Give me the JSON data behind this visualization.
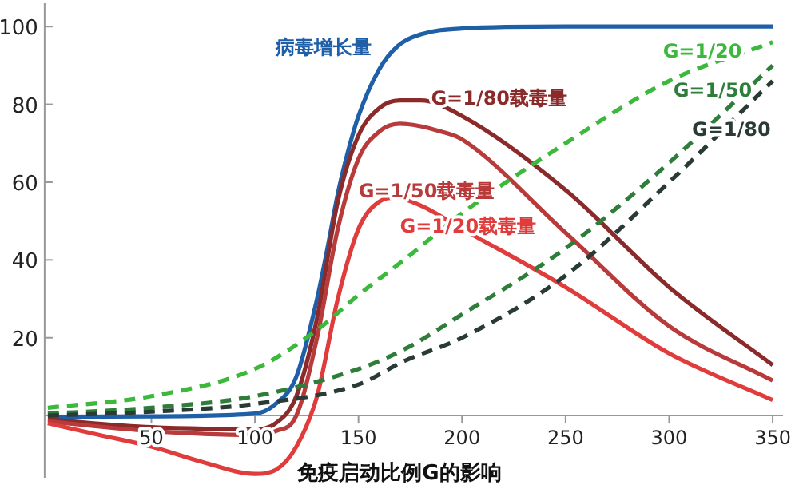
{
  "chart_data": {
    "type": "line",
    "xlabel": "免疫启动比例G的影响",
    "xlim": [
      -1.5,
      355
    ],
    "ylim": [
      -16,
      106
    ],
    "xticks": [
      50,
      100,
      150,
      200,
      250,
      300,
      350
    ],
    "yticks": [
      20,
      40,
      60,
      80,
      100
    ],
    "grid": false,
    "series": [
      {
        "name": "病毒增长量",
        "color": "#1f5fa8",
        "line_style": "solid",
        "x": [
          0,
          50,
          100,
          110,
          120,
          130,
          135,
          140,
          145,
          150,
          160,
          169,
          180,
          200,
          250,
          350
        ],
        "values": [
          -0.3,
          -0.2,
          0.5,
          3,
          10,
          30,
          43,
          57,
          68,
          77,
          89,
          95,
          98,
          99.5,
          100,
          100
        ]
      },
      {
        "name": "G=1/80载毒量",
        "color": "#8b2a2a",
        "line_style": "solid",
        "x": [
          0,
          50,
          100,
          110,
          120,
          130,
          140,
          150,
          160,
          170,
          180,
          200,
          250,
          300,
          350
        ],
        "values": [
          -1,
          -3,
          -3.5,
          -2,
          5,
          25,
          55,
          72,
          79,
          81,
          81,
          77,
          58,
          33,
          13
        ]
      },
      {
        "name": "G=1/50载毒量",
        "color": "#b83a3a",
        "line_style": "solid",
        "x": [
          0,
          50,
          100,
          110,
          120,
          130,
          140,
          150,
          160,
          170,
          190,
          200,
          250,
          300,
          350
        ],
        "values": [
          -1.5,
          -4,
          -5,
          -4,
          0,
          20,
          48,
          66,
          73,
          75,
          73,
          71,
          47,
          23,
          9
        ]
      },
      {
        "name": "G=1/20载毒量",
        "color": "#e03c3c",
        "line_style": "solid",
        "x": [
          0,
          25,
          50,
          75,
          100,
          110,
          120,
          130,
          140,
          150,
          160,
          168,
          180,
          200,
          250,
          300,
          350
        ],
        "values": [
          -2,
          -5,
          -8,
          -12,
          -15,
          -14,
          -8,
          5,
          30,
          48,
          55,
          56,
          54,
          48,
          33,
          16,
          4
        ]
      },
      {
        "name": "G=1/20",
        "color": "#3cb83c",
        "line_style": "dashed",
        "x": [
          0,
          50,
          100,
          130,
          150,
          172,
          200,
          250,
          300,
          350
        ],
        "values": [
          2,
          5,
          12,
          22,
          31,
          40,
          52,
          70,
          86,
          96
        ]
      },
      {
        "name": "G=1/50",
        "color": "#2e7d3a",
        "line_style": "dashed",
        "x": [
          0,
          50,
          100,
          150,
          172,
          200,
          250,
          300,
          350
        ],
        "values": [
          0.5,
          2,
          5,
          12,
          17,
          26,
          43,
          65,
          90
        ]
      },
      {
        "name": "G=1/80",
        "color": "#2a3a34",
        "line_style": "dashed",
        "x": [
          0,
          50,
          100,
          150,
          172,
          200,
          250,
          300,
          350
        ],
        "values": [
          0,
          1,
          3,
          8,
          14,
          20,
          36,
          60,
          86
        ]
      }
    ]
  }
}
